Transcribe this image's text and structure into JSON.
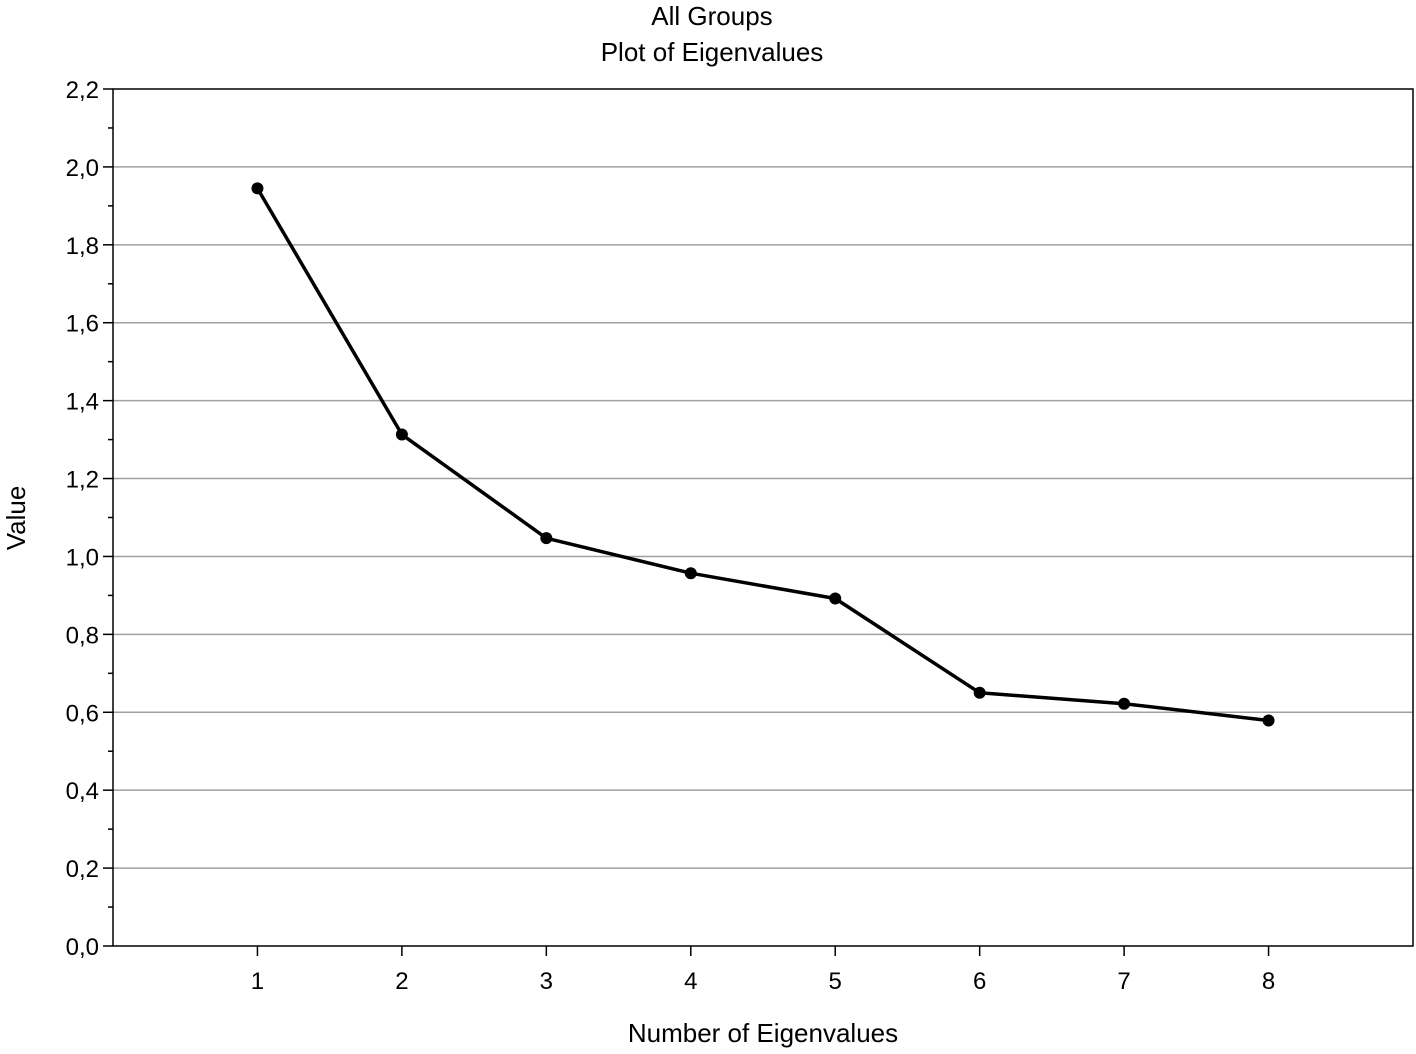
{
  "chart_data": {
    "type": "line",
    "title": "All Groups",
    "subtitle": "Plot of Eigenvalues",
    "xlabel": "Number of Eigenvalues",
    "ylabel": "Value",
    "x": [
      1,
      2,
      3,
      4,
      5,
      6,
      7,
      8
    ],
    "x_tick_labels": [
      "1",
      "2",
      "3",
      "4",
      "5",
      "6",
      "7",
      "8"
    ],
    "xlim": [
      0,
      9
    ],
    "values": [
      1.945,
      1.313,
      1.047,
      0.957,
      0.892,
      0.65,
      0.622,
      0.579
    ],
    "ylim": [
      0,
      2.2
    ],
    "y_ticks": [
      0.0,
      0.2,
      0.4,
      0.6,
      0.8,
      1.0,
      1.2,
      1.4,
      1.6,
      1.8,
      2.0,
      2.2
    ],
    "y_tick_labels": [
      "0,0",
      "0,2",
      "0,4",
      "0,6",
      "0,8",
      "1,0",
      "1,2",
      "1,4",
      "1,6",
      "1,8",
      "2,0",
      "2,2"
    ],
    "grid": "horizontal",
    "line_color": "#000000",
    "grid_color": "#a0a0a0"
  }
}
